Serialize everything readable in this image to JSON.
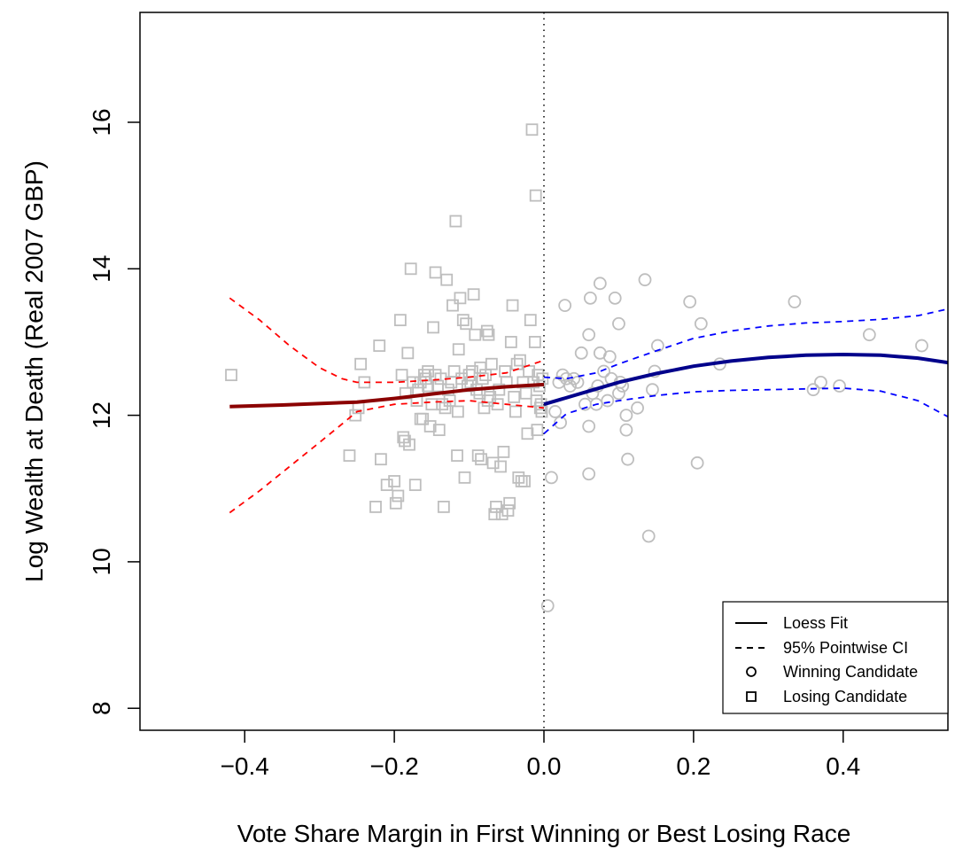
{
  "chart_data": {
    "type": "scatter",
    "xlabel": "Vote Share Margin in First Winning or Best Losing Race",
    "ylabel": "Log Wealth at Death (Real 2007 GBP)",
    "xlim": [
      -0.54,
      0.54
    ],
    "ylim": [
      7.7,
      17.5
    ],
    "x_ticks": [
      -0.4,
      -0.2,
      0.0,
      0.2,
      0.4
    ],
    "x_tick_labels": [
      "−0.4",
      "−0.2",
      "0.0",
      "0.2",
      "0.4"
    ],
    "y_ticks": [
      8,
      10,
      12,
      14,
      16
    ],
    "y_tick_labels": [
      "8",
      "10",
      "12",
      "14",
      "16"
    ],
    "cutoff": 0.0,
    "colors": {
      "points": "#bebebe",
      "losing_fit": "#8b0000",
      "losing_ci": "#ff0000",
      "winning_fit": "#00008b",
      "winning_ci": "#0000ff",
      "cutoff_line": "#000000"
    },
    "legend": {
      "position": "bottom-right",
      "entries": [
        {
          "label": "Loess Fit",
          "symbol": "solid-line"
        },
        {
          "label": "95% Pointwise CI",
          "symbol": "dashed-line"
        },
        {
          "label": "Winning Candidate",
          "symbol": "circle"
        },
        {
          "label": "Losing Candidate",
          "symbol": "square"
        }
      ]
    },
    "series": [
      {
        "group": "winning",
        "marker": "circle",
        "points": [
          [
            0.005,
            9.4
          ],
          [
            0.01,
            11.15
          ],
          [
            0.015,
            12.05
          ],
          [
            0.02,
            12.45
          ],
          [
            0.022,
            11.9
          ],
          [
            0.025,
            12.55
          ],
          [
            0.028,
            13.5
          ],
          [
            0.03,
            12.5
          ],
          [
            0.035,
            12.4
          ],
          [
            0.04,
            12.5
          ],
          [
            0.045,
            12.45
          ],
          [
            0.05,
            12.85
          ],
          [
            0.055,
            12.15
          ],
          [
            0.06,
            13.1
          ],
          [
            0.06,
            11.85
          ],
          [
            0.06,
            11.2
          ],
          [
            0.062,
            13.6
          ],
          [
            0.065,
            12.3
          ],
          [
            0.07,
            12.15
          ],
          [
            0.072,
            12.4
          ],
          [
            0.075,
            12.85
          ],
          [
            0.075,
            13.8
          ],
          [
            0.08,
            12.6
          ],
          [
            0.085,
            12.2
          ],
          [
            0.088,
            12.8
          ],
          [
            0.09,
            12.5
          ],
          [
            0.095,
            13.6
          ],
          [
            0.1,
            12.3
          ],
          [
            0.1,
            13.25
          ],
          [
            0.102,
            12.45
          ],
          [
            0.105,
            12.4
          ],
          [
            0.11,
            12.0
          ],
          [
            0.11,
            11.8
          ],
          [
            0.112,
            11.4
          ],
          [
            0.125,
            12.1
          ],
          [
            0.135,
            13.85
          ],
          [
            0.14,
            10.35
          ],
          [
            0.145,
            12.35
          ],
          [
            0.148,
            12.6
          ],
          [
            0.152,
            12.95
          ],
          [
            0.195,
            13.55
          ],
          [
            0.205,
            11.35
          ],
          [
            0.21,
            13.25
          ],
          [
            0.235,
            12.7
          ],
          [
            0.335,
            13.55
          ],
          [
            0.36,
            12.35
          ],
          [
            0.37,
            12.45
          ],
          [
            0.395,
            12.4
          ],
          [
            0.435,
            13.1
          ],
          [
            0.505,
            12.95
          ]
        ]
      },
      {
        "group": "losing",
        "marker": "square",
        "points": [
          [
            -0.418,
            12.55
          ],
          [
            -0.26,
            11.45
          ],
          [
            -0.252,
            12.0
          ],
          [
            -0.248,
            12.1
          ],
          [
            -0.245,
            12.7
          ],
          [
            -0.24,
            12.45
          ],
          [
            -0.225,
            10.75
          ],
          [
            -0.22,
            12.95
          ],
          [
            -0.218,
            11.4
          ],
          [
            -0.21,
            11.05
          ],
          [
            -0.2,
            11.1
          ],
          [
            -0.198,
            10.8
          ],
          [
            -0.195,
            10.9
          ],
          [
            -0.192,
            13.3
          ],
          [
            -0.19,
            12.55
          ],
          [
            -0.188,
            11.7
          ],
          [
            -0.186,
            11.65
          ],
          [
            -0.185,
            12.3
          ],
          [
            -0.182,
            12.85
          ],
          [
            -0.18,
            11.6
          ],
          [
            -0.178,
            14.0
          ],
          [
            -0.175,
            12.45
          ],
          [
            -0.172,
            11.05
          ],
          [
            -0.17,
            12.2
          ],
          [
            -0.168,
            12.35
          ],
          [
            -0.165,
            12.45
          ],
          [
            -0.162,
            11.95
          ],
          [
            -0.16,
            12.55
          ],
          [
            -0.158,
            12.5
          ],
          [
            -0.155,
            12.6
          ],
          [
            -0.152,
            11.85
          ],
          [
            -0.15,
            12.15
          ],
          [
            -0.148,
            13.2
          ],
          [
            -0.145,
            13.95
          ],
          [
            -0.142,
            12.4
          ],
          [
            -0.14,
            11.8
          ],
          [
            -0.138,
            12.5
          ],
          [
            -0.136,
            12.15
          ],
          [
            -0.134,
            10.75
          ],
          [
            -0.132,
            12.1
          ],
          [
            -0.13,
            13.85
          ],
          [
            -0.128,
            12.35
          ],
          [
            -0.126,
            12.2
          ],
          [
            -0.124,
            12.45
          ],
          [
            -0.122,
            13.5
          ],
          [
            -0.12,
            12.6
          ],
          [
            -0.118,
            14.65
          ],
          [
            -0.116,
            11.45
          ],
          [
            -0.114,
            12.9
          ],
          [
            -0.112,
            13.6
          ],
          [
            -0.11,
            12.5
          ],
          [
            -0.108,
            13.3
          ],
          [
            -0.106,
            11.15
          ],
          [
            -0.104,
            13.25
          ],
          [
            -0.102,
            12.4
          ],
          [
            -0.1,
            12.55
          ],
          [
            -0.098,
            12.45
          ],
          [
            -0.096,
            12.6
          ],
          [
            -0.094,
            13.65
          ],
          [
            -0.09,
            12.35
          ],
          [
            -0.088,
            11.45
          ],
          [
            -0.086,
            12.3
          ],
          [
            -0.084,
            11.4
          ],
          [
            -0.082,
            12.5
          ],
          [
            -0.08,
            12.1
          ],
          [
            -0.078,
            12.55
          ],
          [
            -0.076,
            13.15
          ],
          [
            -0.074,
            13.1
          ],
          [
            -0.072,
            12.25
          ],
          [
            -0.07,
            12.7
          ],
          [
            -0.068,
            11.35
          ],
          [
            -0.066,
            10.65
          ],
          [
            -0.064,
            10.75
          ],
          [
            -0.062,
            12.15
          ],
          [
            -0.06,
            12.35
          ],
          [
            -0.058,
            11.3
          ],
          [
            -0.056,
            10.65
          ],
          [
            -0.054,
            11.5
          ],
          [
            -0.052,
            12.6
          ],
          [
            -0.05,
            12.45
          ],
          [
            -0.048,
            10.7
          ],
          [
            -0.046,
            10.8
          ],
          [
            -0.044,
            13.0
          ],
          [
            -0.042,
            13.5
          ],
          [
            -0.04,
            12.25
          ],
          [
            -0.038,
            12.05
          ],
          [
            -0.036,
            12.7
          ],
          [
            -0.034,
            11.15
          ],
          [
            -0.032,
            12.75
          ],
          [
            -0.03,
            11.1
          ],
          [
            -0.028,
            12.45
          ],
          [
            -0.026,
            11.1
          ],
          [
            -0.024,
            12.3
          ],
          [
            -0.022,
            11.75
          ],
          [
            -0.02,
            12.6
          ],
          [
            -0.018,
            13.3
          ],
          [
            -0.016,
            15.9
          ],
          [
            -0.014,
            12.45
          ],
          [
            -0.012,
            13.0
          ],
          [
            -0.011,
            15.0
          ],
          [
            -0.01,
            12.2
          ],
          [
            -0.009,
            11.8
          ],
          [
            -0.008,
            12.55
          ],
          [
            -0.006,
            12.4
          ],
          [
            -0.005,
            12.1
          ],
          [
            -0.004,
            12.15
          ],
          [
            -0.003,
            12.05
          ],
          [
            -0.002,
            12.5
          ],
          [
            -0.145,
            12.55
          ],
          [
            -0.115,
            12.05
          ],
          [
            -0.085,
            12.65
          ],
          [
            -0.075,
            12.2
          ],
          [
            -0.155,
            12.4
          ],
          [
            -0.165,
            11.95
          ],
          [
            -0.092,
            13.1
          ]
        ]
      },
      {
        "group": "losing",
        "kind": "loess_fit",
        "x": [
          -0.42,
          -0.35,
          -0.25,
          -0.2,
          -0.15,
          -0.1,
          -0.05,
          0.0
        ],
        "y": [
          12.12,
          12.14,
          12.18,
          12.23,
          12.29,
          12.35,
          12.39,
          12.42
        ]
      },
      {
        "group": "losing",
        "kind": "ci_upper",
        "x": [
          -0.42,
          -0.38,
          -0.34,
          -0.3,
          -0.27,
          -0.25,
          -0.2,
          -0.15,
          -0.1,
          -0.05,
          0.0
        ],
        "y": [
          13.6,
          13.3,
          12.95,
          12.65,
          12.5,
          12.45,
          12.45,
          12.48,
          12.52,
          12.58,
          12.75
        ]
      },
      {
        "group": "losing",
        "kind": "ci_lower",
        "x": [
          -0.42,
          -0.38,
          -0.34,
          -0.3,
          -0.27,
          -0.25,
          -0.2,
          -0.15,
          -0.1,
          -0.05,
          0.0
        ],
        "y": [
          10.67,
          10.97,
          11.3,
          11.63,
          11.88,
          12.05,
          12.15,
          12.18,
          12.2,
          12.15,
          12.1
        ]
      },
      {
        "group": "winning",
        "kind": "loess_fit",
        "x": [
          0.0,
          0.05,
          0.1,
          0.15,
          0.2,
          0.25,
          0.3,
          0.35,
          0.4,
          0.45,
          0.5,
          0.54
        ],
        "y": [
          12.15,
          12.3,
          12.45,
          12.57,
          12.67,
          12.74,
          12.79,
          12.82,
          12.83,
          12.82,
          12.78,
          12.72
        ]
      },
      {
        "group": "winning",
        "kind": "ci_upper",
        "x": [
          0.0,
          0.03,
          0.07,
          0.1,
          0.15,
          0.2,
          0.25,
          0.3,
          0.35,
          0.4,
          0.45,
          0.5,
          0.54
        ],
        "y": [
          12.52,
          12.5,
          12.58,
          12.7,
          12.88,
          13.05,
          13.15,
          13.22,
          13.26,
          13.28,
          13.31,
          13.36,
          13.45
        ]
      },
      {
        "group": "winning",
        "kind": "ci_lower",
        "x": [
          0.0,
          0.03,
          0.07,
          0.1,
          0.15,
          0.2,
          0.25,
          0.3,
          0.35,
          0.4,
          0.45,
          0.5,
          0.54
        ],
        "y": [
          11.75,
          12.02,
          12.15,
          12.2,
          12.27,
          12.32,
          12.34,
          12.35,
          12.36,
          12.37,
          12.33,
          12.2,
          11.98
        ]
      }
    ]
  }
}
